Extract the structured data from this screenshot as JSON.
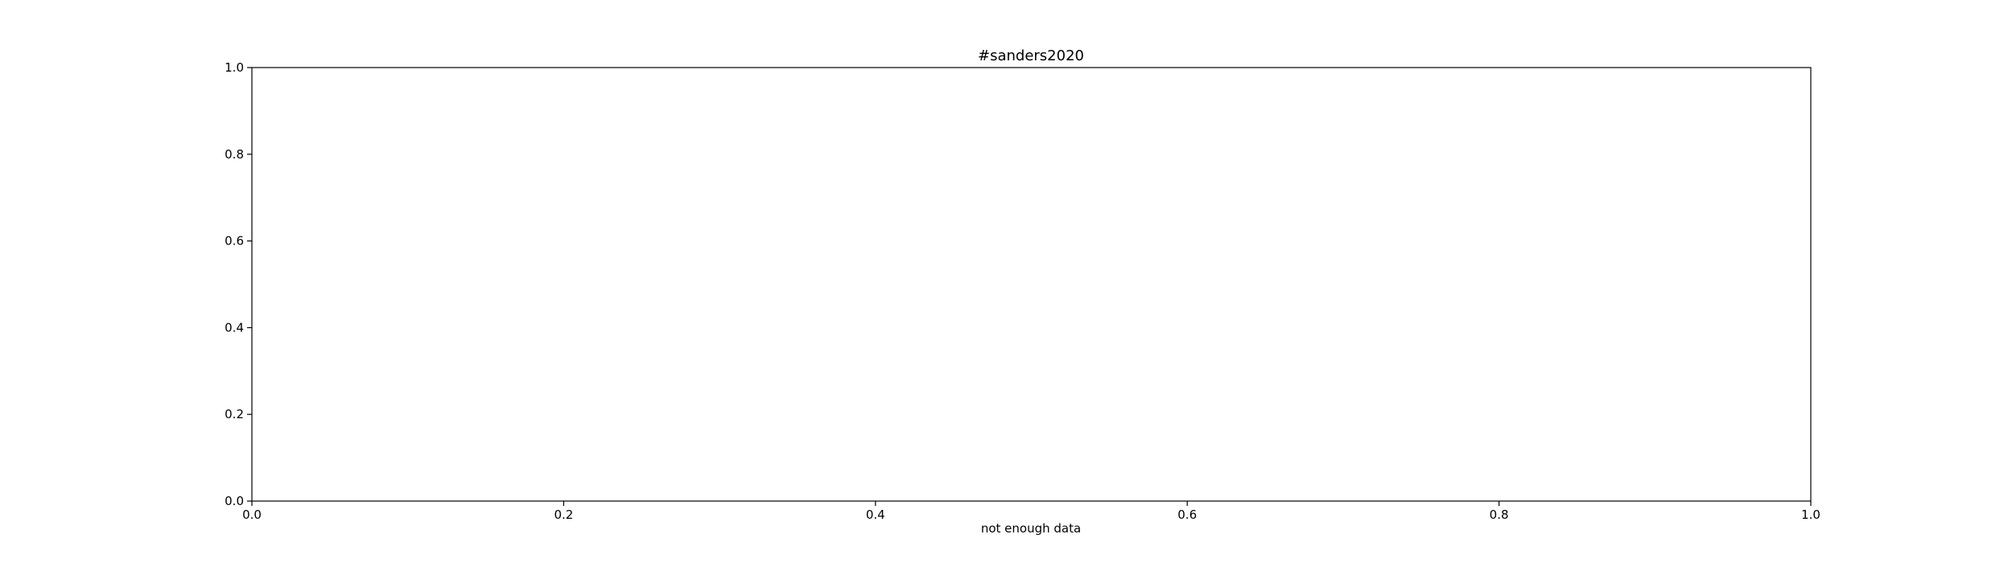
{
  "chart_data": {
    "type": "line",
    "title": "#sanders2020",
    "xlabel": "not enough data",
    "ylabel": "",
    "xlim": [
      0.0,
      1.0
    ],
    "ylim": [
      0.0,
      1.0
    ],
    "xticks": [
      "0.0",
      "0.2",
      "0.4",
      "0.6",
      "0.8",
      "1.0"
    ],
    "yticks": [
      "0.0",
      "0.2",
      "0.4",
      "0.6",
      "0.8",
      "1.0"
    ],
    "grid": false,
    "series": []
  }
}
